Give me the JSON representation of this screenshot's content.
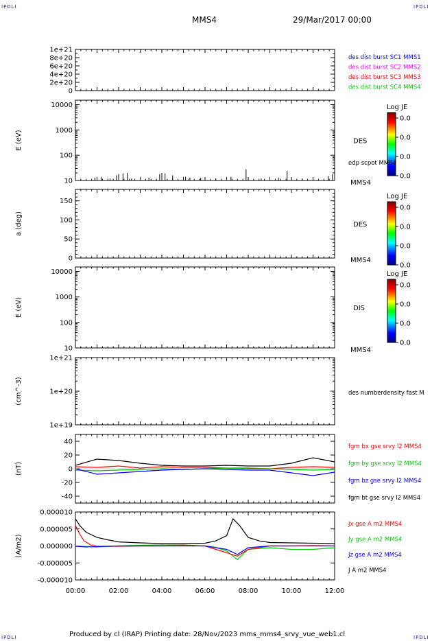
{
  "header": {
    "corner_label": "IPDLI",
    "spacecraft": "MMS4",
    "datetime": "29/Mar/2017 00:00"
  },
  "footer": {
    "text": "Produced by cl (IRAP)   Printing date: 28/Nov/2023   mms_mms4_srvy_vue_web1.cl"
  },
  "x_axis": {
    "tick_labels": [
      "00:00",
      "02:00",
      "04:00",
      "06:00",
      "08:00",
      "10:00",
      "12:00"
    ],
    "range_hours": [
      0,
      12
    ]
  },
  "colors": {
    "blue": "#0000ff",
    "magenta": "#ff00ff",
    "red": "#ff0000",
    "green": "#00cc00",
    "black": "#000000"
  },
  "chart_data": [
    {
      "type": "line",
      "panel": "dist",
      "ylabel": "",
      "ylim": [
        0,
        1e+21
      ],
      "y_tick_labels": [
        "1e+21",
        "8e+20",
        "6e+20",
        "4e+20",
        "2e+20",
        "0"
      ],
      "y_ticks": [
        1e+21,
        8e+20,
        6e+20,
        4e+20,
        2e+20,
        0
      ],
      "series": [
        {
          "name": "des dist burst SC1 MMS1",
          "color": "#0000ff"
        },
        {
          "name": "des dist burst SC2 MMS2",
          "color": "#ff00ff"
        },
        {
          "name": "des dist burst SC3 MMS3",
          "color": "#ff0000"
        },
        {
          "name": "des dist burst SC4 MMS4",
          "color": "#00cc00"
        }
      ]
    },
    {
      "type": "heatmap",
      "panel": "des_energy",
      "ylabel": "E (eV)",
      "yscale": "log",
      "ylim": [
        10,
        15000
      ],
      "y_tick_labels": [
        "10000",
        "1000",
        "100",
        "10"
      ],
      "y_ticks": [
        10000,
        1000,
        100,
        10
      ],
      "label": "DES",
      "sc_label": "MMS4",
      "overlay_label": "edp scpot MMS4",
      "colorbar": {
        "title": "Log JE",
        "tick_labels": [
          "0.0",
          "0.0",
          "0.0",
          "0.0"
        ]
      },
      "scpot_spikes": [
        {
          "t": 0.9,
          "v": 13
        },
        {
          "t": 1.2,
          "v": 14
        },
        {
          "t": 1.6,
          "v": 12
        },
        {
          "t": 1.9,
          "v": 16
        },
        {
          "t": 2.0,
          "v": 18
        },
        {
          "t": 2.2,
          "v": 19
        },
        {
          "t": 2.4,
          "v": 20
        },
        {
          "t": 2.6,
          "v": 12
        },
        {
          "t": 3.4,
          "v": 13
        },
        {
          "t": 3.9,
          "v": 18
        },
        {
          "t": 4.0,
          "v": 20
        },
        {
          "t": 4.15,
          "v": 19
        },
        {
          "t": 4.5,
          "v": 16
        },
        {
          "t": 5.1,
          "v": 14
        },
        {
          "t": 5.3,
          "v": 13
        },
        {
          "t": 5.8,
          "v": 13
        },
        {
          "t": 6.5,
          "v": 12
        },
        {
          "t": 7.2,
          "v": 14
        },
        {
          "t": 7.9,
          "v": 28
        },
        {
          "t": 8.6,
          "v": 12
        },
        {
          "t": 9.4,
          "v": 13
        },
        {
          "t": 9.8,
          "v": 24
        },
        {
          "t": 10.0,
          "v": 13
        },
        {
          "t": 10.5,
          "v": 12
        },
        {
          "t": 11.7,
          "v": 15
        },
        {
          "t": 11.9,
          "v": 18
        }
      ]
    },
    {
      "type": "heatmap",
      "panel": "des_pitch",
      "ylabel": "a (deg)",
      "ylim": [
        0,
        180
      ],
      "y_tick_labels": [
        "150",
        "100",
        "50",
        "0"
      ],
      "y_ticks": [
        150,
        100,
        50,
        0
      ],
      "label": "DES",
      "sc_label": "MMS4",
      "colorbar": {
        "title": "Log JE",
        "tick_labels": [
          "0.0",
          "0.0",
          "0.0",
          "0.0"
        ]
      }
    },
    {
      "type": "heatmap",
      "panel": "dis_energy",
      "ylabel": "E (eV)",
      "yscale": "log",
      "ylim": [
        10,
        15000
      ],
      "y_tick_labels": [
        "10000",
        "1000",
        "100",
        "10"
      ],
      "y_ticks": [
        10000,
        1000,
        100,
        10
      ],
      "label": "DIS",
      "sc_label": "MMS4",
      "colorbar": {
        "title": "Log JE",
        "tick_labels": [
          "0.0",
          "0.0",
          "0.0",
          "0.0"
        ]
      }
    },
    {
      "type": "line",
      "panel": "density",
      "ylabel": "(cm^-3)",
      "yscale": "log",
      "ylim": [
        1e+19,
        1e+21
      ],
      "y_tick_labels": [
        "1e+21",
        "1e+20",
        "1e+19"
      ],
      "y_ticks": [
        1e+21,
        1e+20,
        1e+19
      ],
      "series": [
        {
          "name": "des numberdensity fast M",
          "color": "#000000"
        }
      ]
    },
    {
      "type": "line",
      "panel": "fgm",
      "ylabel": "(nT)",
      "ylim": [
        -50,
        50
      ],
      "y_tick_labels": [
        "40",
        "20",
        "0",
        "-20",
        "-40"
      ],
      "y_ticks": [
        40,
        20,
        0,
        -20,
        -40
      ],
      "series": [
        {
          "name": "fgm bx gse srvy l2 MMS4",
          "color": "#ff0000",
          "x": [
            0,
            1,
            2,
            3,
            4,
            5,
            6,
            7,
            8,
            9,
            10,
            11,
            12
          ],
          "values": [
            3,
            2,
            4,
            1,
            3,
            2,
            2,
            1,
            1,
            0,
            2,
            3,
            2
          ]
        },
        {
          "name": "fgm by gse srvy l2 MMS4",
          "color": "#00cc00",
          "x": [
            0,
            1,
            2,
            3,
            4,
            5,
            6,
            7,
            8,
            9,
            10,
            11,
            12
          ],
          "values": [
            -2,
            -3,
            -2,
            -1,
            0,
            -1,
            0,
            1,
            0,
            0,
            -1,
            -2,
            -1
          ]
        },
        {
          "name": "fgm bz gse srvy l2 MMS4",
          "color": "#0000ff",
          "x": [
            0,
            1,
            2,
            3,
            4,
            5,
            6,
            7,
            8,
            9,
            10,
            11,
            12
          ],
          "values": [
            0,
            -8,
            -6,
            -4,
            -2,
            -1,
            0,
            -1,
            -2,
            -2,
            -6,
            -10,
            -5
          ]
        },
        {
          "name": "fgm bt gse srvy l2 MMS4",
          "color": "#000000",
          "x": [
            0,
            1,
            2,
            3,
            4,
            5,
            6,
            7,
            8,
            9,
            10,
            11,
            12
          ],
          "values": [
            5,
            14,
            12,
            8,
            5,
            4,
            4,
            5,
            4,
            4,
            8,
            16,
            10
          ]
        }
      ]
    },
    {
      "type": "line",
      "panel": "current",
      "ylabel": "(A/m2)",
      "ylim": [
        -1e-05,
        1e-05
      ],
      "y_tick_labels": [
        "0.000010",
        "0.000005",
        "0.000000",
        "-0.000005",
        "-0.000010"
      ],
      "y_ticks": [
        1e-05,
        5e-06,
        0,
        -5e-06,
        -1e-05
      ],
      "series": [
        {
          "name": "Jx gse A m2 MMS4",
          "color": "#ff0000",
          "x": [
            0,
            0.2,
            0.4,
            0.7,
            1,
            2,
            3,
            4,
            5,
            6,
            6.5,
            7,
            7.5,
            8,
            9,
            10,
            11,
            12
          ],
          "values": [
            6e-06,
            3.5e-06,
            1.5e-06,
            3e-07,
            -1e-07,
            -1e-07,
            0,
            0,
            1e-07,
            0,
            -1e-06,
            -2e-06,
            -3e-06,
            -1e-06,
            0,
            0,
            1e-07,
            0
          ]
        },
        {
          "name": "Jy gse A m2 MMS4",
          "color": "#00cc00",
          "x": [
            0,
            1,
            2,
            3,
            4,
            5,
            6,
            6.5,
            7,
            7.5,
            8,
            9,
            10,
            11,
            12
          ],
          "values": [
            0,
            -3e-07,
            0,
            2e-07,
            3e-07,
            3e-07,
            0,
            -4e-07,
            -1.5e-06,
            -4e-06,
            -1e-06,
            -5e-07,
            -1e-06,
            -1e-06,
            -5e-07
          ]
        },
        {
          "name": "Jz gse A m2 MMS4",
          "color": "#0000ff",
          "x": [
            0,
            0.5,
            1,
            2,
            3,
            4,
            5,
            6,
            7,
            7.5,
            8,
            9,
            10,
            11,
            12
          ],
          "values": [
            -1e-07,
            -3e-07,
            -2e-07,
            0,
            0,
            0,
            0,
            0,
            -1e-06,
            -2.5e-06,
            -5e-07,
            0,
            0,
            0,
            0
          ]
        },
        {
          "name": "J A m2 MMS4",
          "color": "#000000",
          "x": [
            0,
            0.2,
            0.5,
            1,
            1.5,
            2,
            3,
            4,
            5,
            6,
            6.5,
            7,
            7.3,
            7.6,
            8,
            8.5,
            9,
            10,
            11,
            12
          ],
          "values": [
            8e-06,
            6e-06,
            4e-06,
            2.5e-06,
            1.8e-06,
            1.2e-06,
            9e-07,
            7e-07,
            7e-07,
            8e-07,
            1.5e-06,
            3e-06,
            8e-06,
            6e-06,
            2.5e-06,
            1.5e-06,
            1e-06,
            9e-07,
            8e-07,
            7e-07
          ]
        }
      ]
    }
  ]
}
